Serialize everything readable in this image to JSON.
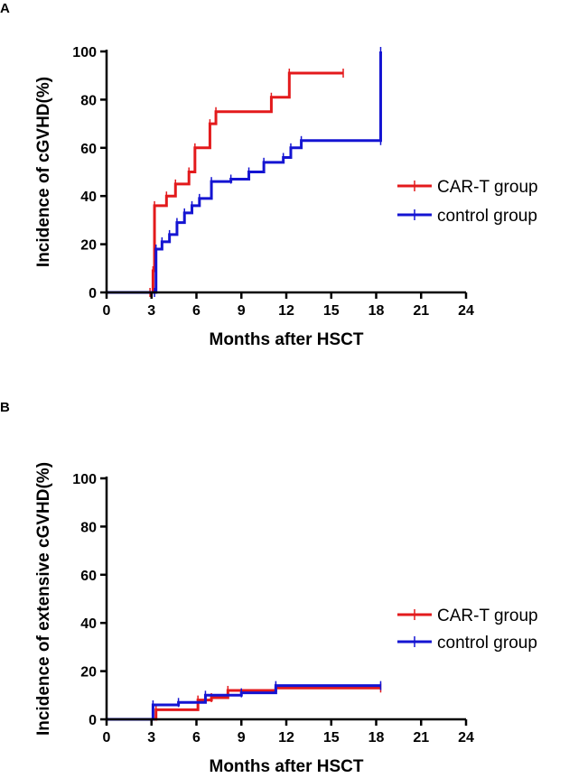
{
  "chart_data": [
    {
      "panel": "A",
      "type": "line",
      "step": true,
      "xlabel": "Months after HSCT",
      "ylabel": "Incidence of cGVHD(%)",
      "xlim": [
        0,
        24
      ],
      "ylim": [
        0,
        100
      ],
      "xticks": [
        0,
        3,
        6,
        9,
        12,
        15,
        18,
        21,
        24
      ],
      "yticks": [
        0,
        20,
        40,
        60,
        80,
        100
      ],
      "legend_position": "right",
      "series": [
        {
          "name": "CAR-T group",
          "color": "#e31a1c",
          "x": [
            0,
            2.9,
            3.1,
            3.2,
            4.0,
            4.6,
            5.5,
            5.9,
            6.9,
            7.3,
            11.0,
            12.2,
            15.8
          ],
          "y": [
            0,
            0,
            9,
            36,
            40,
            45,
            50,
            60,
            70,
            75,
            81,
            91,
            91
          ]
        },
        {
          "name": "control group",
          "color": "#1414d2",
          "x": [
            0,
            3.2,
            3.3,
            3.7,
            4.2,
            4.7,
            5.2,
            5.7,
            6.2,
            7.0,
            8.3,
            9.5,
            10.5,
            11.8,
            12.3,
            13.0,
            18.3,
            18.3
          ],
          "y": [
            0,
            0,
            18,
            21,
            24,
            29,
            33,
            36,
            39,
            46,
            47,
            50,
            54,
            56,
            60,
            63,
            63,
            100
          ]
        }
      ]
    },
    {
      "panel": "B",
      "type": "line",
      "step": true,
      "xlabel": "Months after HSCT",
      "ylabel": "Incidence of extensive cGVHD(%)",
      "xlim": [
        0,
        24
      ],
      "ylim": [
        0,
        100
      ],
      "xticks": [
        0,
        3,
        6,
        9,
        12,
        15,
        18,
        21,
        24
      ],
      "yticks": [
        0,
        20,
        40,
        60,
        80,
        100
      ],
      "legend_position": "right",
      "series": [
        {
          "name": "CAR-T group",
          "color": "#e31a1c",
          "x": [
            0,
            3.3,
            6.1,
            7.0,
            8.1,
            11.3,
            18.3
          ],
          "y": [
            0,
            4,
            8,
            9,
            12,
            13,
            13
          ]
        },
        {
          "name": "control group",
          "color": "#1414d2",
          "x": [
            0,
            3.1,
            4.8,
            6.6,
            9.0,
            11.3,
            18.3
          ],
          "y": [
            0,
            6,
            7,
            10,
            11,
            14,
            14
          ]
        }
      ]
    }
  ]
}
